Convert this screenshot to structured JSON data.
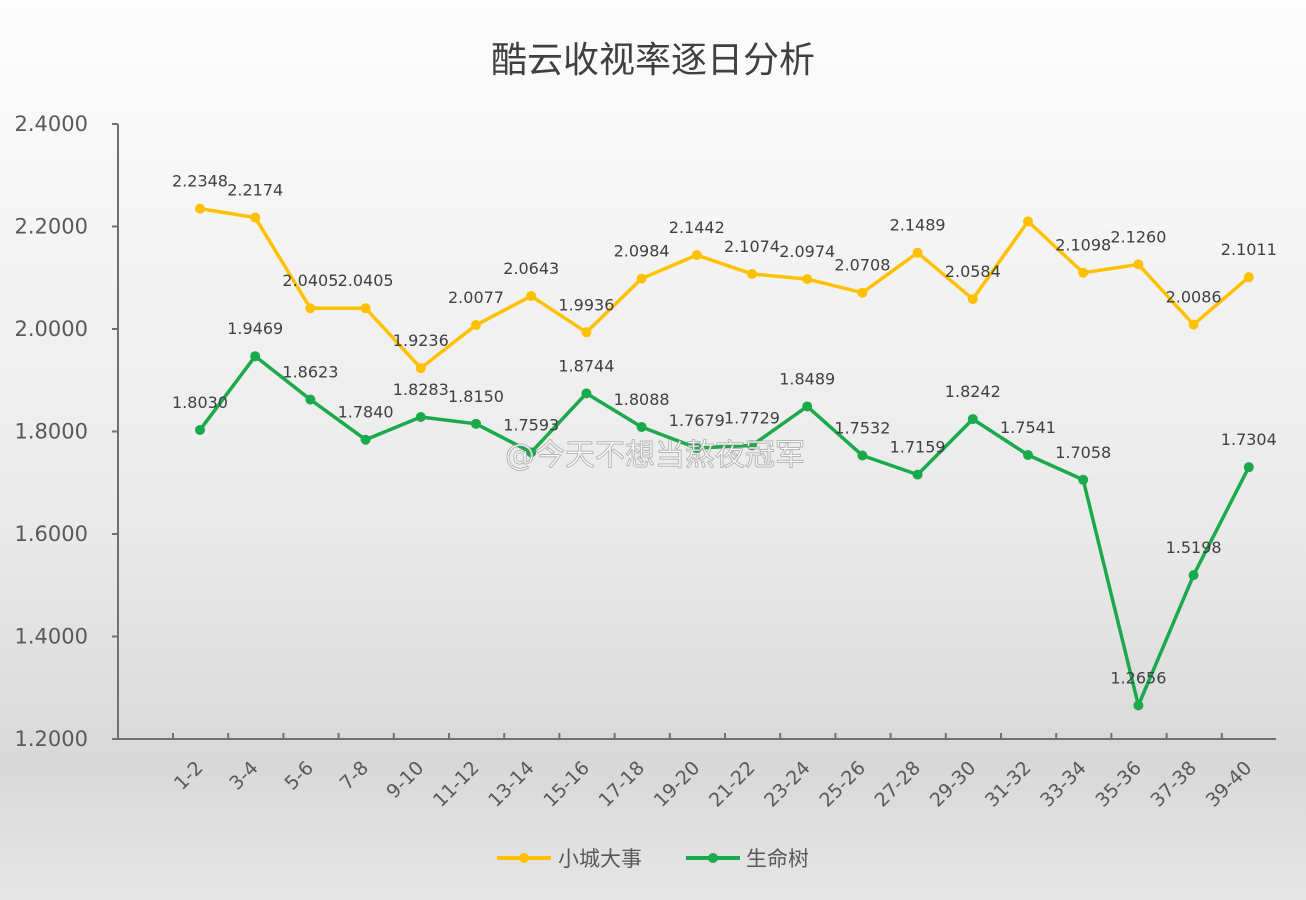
{
  "chart_data": {
    "type": "line",
    "title": "酷云收视率逐日分析",
    "categories": [
      "1-2",
      "3-4",
      "5-6",
      "7-8",
      "9-10",
      "11-12",
      "13-14",
      "15-16",
      "17-18",
      "19-20",
      "21-22",
      "23-24",
      "25-26",
      "27-28",
      "29-30",
      "31-32",
      "33-34",
      "35-36",
      "37-38",
      "39-40"
    ],
    "series": [
      {
        "name": "小城大事",
        "color": "#FFC000",
        "values": [
          2.2348,
          2.2174,
          2.0405,
          2.0405,
          1.9236,
          2.0077,
          2.0643,
          1.9936,
          2.0984,
          2.1442,
          2.1074,
          2.0974,
          2.0708,
          2.1489,
          2.0584,
          2.21,
          2.1098,
          2.126,
          2.0086,
          2.1011
        ],
        "labels": [
          "2.2348",
          "2.2174",
          "2.0405",
          "2.0405",
          "1.9236",
          "2.0077",
          "2.0643",
          "1.9936",
          "2.0984",
          "2.1442",
          "2.1074",
          "2.0974",
          "2.0708",
          "2.1489",
          "2.0584",
          "",
          "2.1098",
          "2.1260",
          "2.0086",
          "2.1011"
        ]
      },
      {
        "name": "生命树",
        "color": "#1AAA4B",
        "values": [
          1.803,
          1.9469,
          1.8623,
          1.784,
          1.8283,
          1.815,
          1.7593,
          1.8744,
          1.8088,
          1.7679,
          1.7729,
          1.8489,
          1.7532,
          1.7159,
          1.8242,
          1.7541,
          1.7058,
          1.2656,
          1.5198,
          1.7304
        ],
        "labels": [
          "1.8030",
          "1.9469",
          "1.8623",
          "1.7840",
          "1.8283",
          "1.8150",
          "1.7593",
          "1.8744",
          "1.8088",
          "1.7679",
          "1.7729",
          "1.8489",
          "1.7532",
          "1.7159",
          "1.8242",
          "1.7541",
          "1.7058",
          "1.2656",
          "1.5198",
          "1.7304"
        ]
      }
    ],
    "yticks": [
      "2.4000",
      "2.2000",
      "2.0000",
      "1.8000",
      "1.6000",
      "1.4000",
      "1.2000"
    ],
    "ylim": [
      1.2,
      2.4
    ],
    "grid": false,
    "legend": "bottom"
  },
  "watermark": "@今天不想当熬夜冠军"
}
